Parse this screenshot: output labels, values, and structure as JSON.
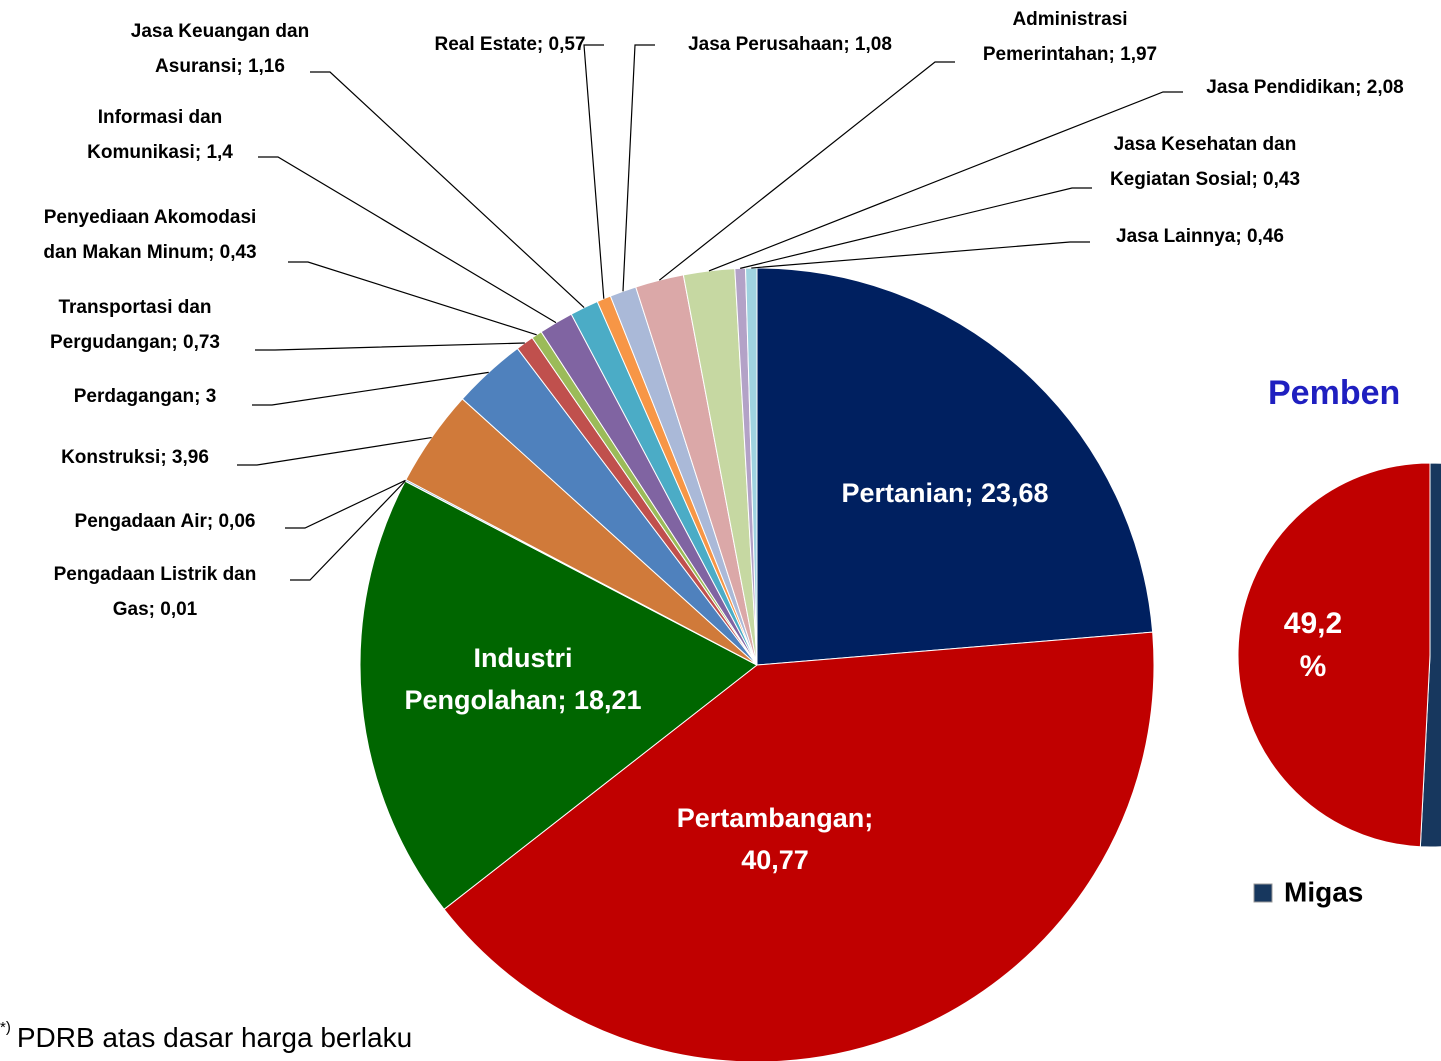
{
  "chart_data": [
    {
      "type": "pie",
      "labels": [
        [
          "Pertanian; 23,68"
        ],
        [
          "Pertambangan;",
          "40,77"
        ],
        [
          "Industri",
          "Pengolahan; 18,21"
        ],
        [
          "Pengadaan Listrik dan",
          "Gas; 0,01"
        ],
        [
          "Pengadaan Air; 0,06"
        ],
        [
          "Konstruksi; 3,96"
        ],
        [
          "Perdagangan; 3"
        ],
        [
          "Transportasi dan",
          "Pergudangan; 0,73"
        ],
        [
          "Penyediaan Akomodasi",
          "dan Makan Minum; 0,43"
        ],
        [
          "Informasi dan",
          "Komunikasi; 1,4"
        ],
        [
          "Jasa Keuangan dan",
          "Asuransi; 1,16"
        ],
        [
          "Real Estate; 0,57"
        ],
        [
          "Jasa Perusahaan; 1,08"
        ],
        [
          "Administrasi",
          "Pemerintahan; 1,97"
        ],
        [
          "Jasa Pendidikan; 2,08"
        ],
        [
          "Jasa Kesehatan dan",
          "Kegiatan Sosial; 0,43"
        ],
        [
          "Jasa Lainnya; 0,46"
        ]
      ],
      "values": [
        23.68,
        40.77,
        18.21,
        0.01,
        0.06,
        3.96,
        3,
        0.73,
        0.43,
        1.4,
        1.16,
        0.57,
        1.08,
        1.97,
        2.08,
        0.43,
        0.46
      ],
      "colors": [
        "#002060",
        "#c00000",
        "#006600",
        "#1f4e79",
        "#2e75b6",
        "#d07a3a",
        "#4f81bd",
        "#c0504d",
        "#9bbb59",
        "#8064a2",
        "#4bacc6",
        "#f79646",
        "#aab9d8",
        "#dba8a8",
        "#c6d8a2",
        "#b3a2c7",
        "#9fd3e0"
      ],
      "footnote": {
        "mark": "*)",
        "text": "PDRB atas dasar harga berlaku"
      }
    },
    {
      "type": "pie",
      "title": "Pemben",
      "categories": [
        "Migas",
        null
      ],
      "values": [
        50.8,
        49.2
      ],
      "value_labels": [
        null,
        "49,2 %"
      ],
      "colors": [
        "#17375e",
        "#c00000"
      ]
    }
  ]
}
